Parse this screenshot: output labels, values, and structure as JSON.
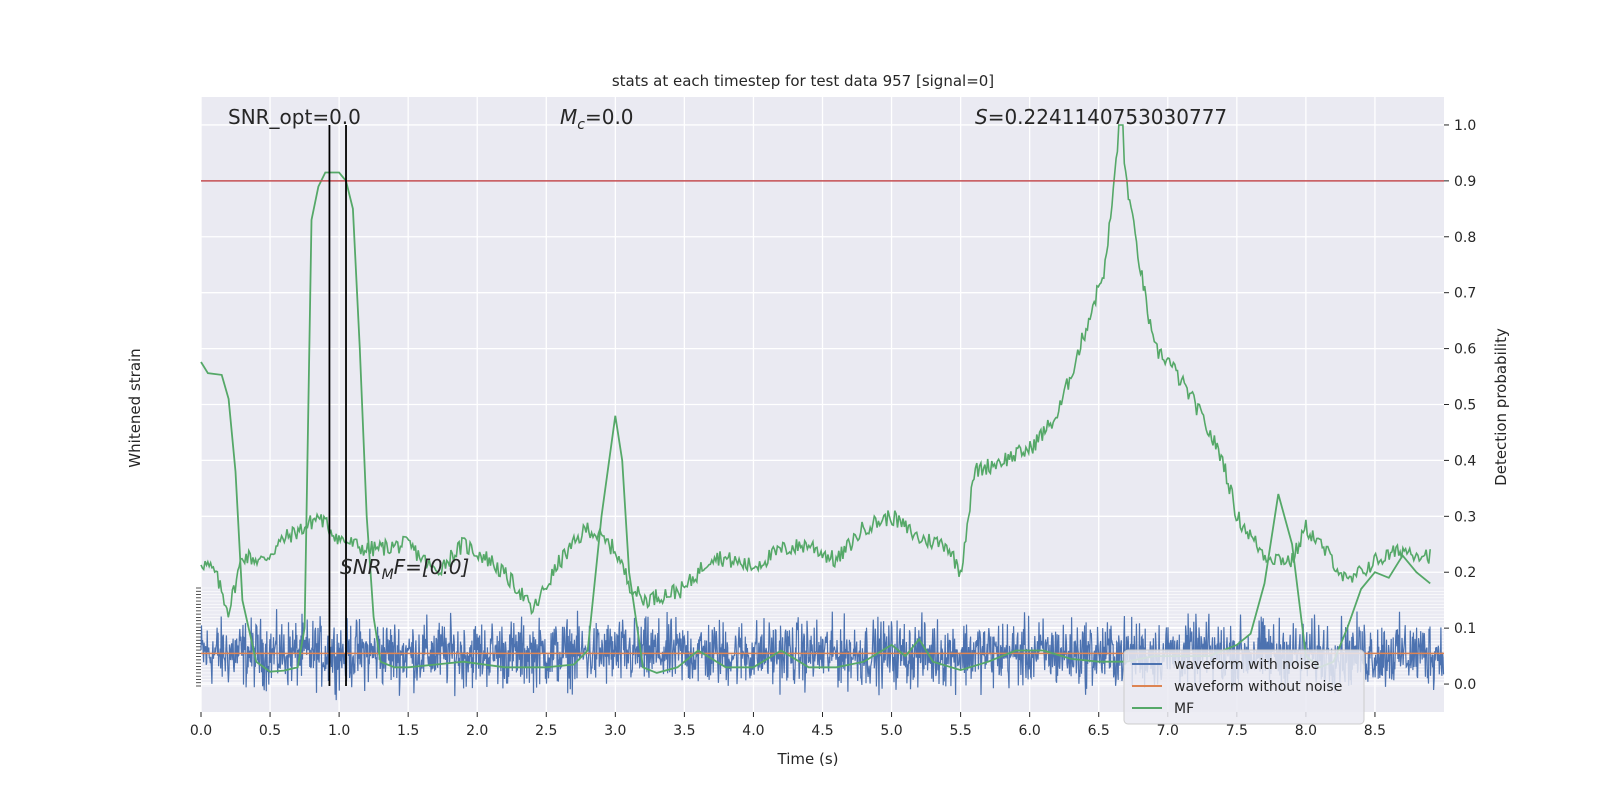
{
  "chart_data": {
    "type": "line",
    "title": "stats at each timestep for test data 957 [signal=0]",
    "xlabel": "Time (s)",
    "ylabel_left": "Whitened strain",
    "ylabel_right": "Detection probability",
    "xlim": [
      0,
      9.0
    ],
    "ylim_left": [
      -1.0,
      2.0
    ],
    "ylim_right": [
      -0.05,
      1.05
    ],
    "x_ticks": [
      "0.0",
      "0.5",
      "1.0",
      "1.5",
      "2.0",
      "2.5",
      "3.0",
      "3.5",
      "4.0",
      "4.5",
      "5.0",
      "5.5",
      "6.0",
      "6.5",
      "7.0",
      "7.5",
      "8.0",
      "8.5"
    ],
    "x_tick_values": [
      0,
      0.5,
      1.0,
      1.5,
      2.0,
      2.5,
      3.0,
      3.5,
      4.0,
      4.5,
      5.0,
      5.5,
      6.0,
      6.5,
      7.0,
      7.5,
      8.0,
      8.5
    ],
    "y_right_ticks": [
      "0.0",
      "0.1",
      "0.2",
      "0.3",
      "0.4",
      "0.5",
      "0.6",
      "0.7",
      "0.8",
      "0.9",
      "1.0"
    ],
    "y_right_tick_values": [
      0,
      0.1,
      0.2,
      0.3,
      0.4,
      0.5,
      0.6,
      0.7,
      0.8,
      0.9,
      1.0
    ],
    "threshold": 0.9,
    "vlines": [
      0.93,
      1.05
    ],
    "annotations": {
      "snr_opt": "SNR_opt=0.0",
      "mc_sym": "M",
      "mc_sub": "c",
      "mc_val": "=0.0",
      "s_sym": "S",
      "s_val": "=0.2241140753030777",
      "snr_mf_a": "SNR",
      "snr_mf_sub": "M",
      "snr_mf_b": "F=[0.0]"
    },
    "legend": {
      "position": "lower-right",
      "entries": [
        "waveform with noise",
        "waveform without noise",
        "MF"
      ]
    },
    "colors": {
      "noise": "#4c72b0",
      "clean": "#dd8452",
      "prob": "#55a868",
      "threshold": "#c44e52",
      "vline": "#000000",
      "background": "#eaeaf2",
      "grid": "#ffffff"
    },
    "mf_series": {
      "x": [
        0.0,
        0.05,
        0.15,
        0.2,
        0.25,
        0.3,
        0.4,
        0.5,
        0.6,
        0.7,
        0.75,
        0.8,
        0.85,
        0.9,
        1.0,
        1.05,
        1.1,
        1.15,
        1.2,
        1.25,
        1.3,
        1.4,
        1.5,
        1.7,
        1.9,
        2.2,
        2.5,
        2.7,
        2.8,
        2.9,
        3.0,
        3.05,
        3.1,
        3.2,
        3.3,
        3.45,
        3.6,
        3.8,
        4.0,
        4.2,
        4.4,
        4.6,
        4.8,
        5.0,
        5.1,
        5.2,
        5.3,
        5.5,
        5.7,
        5.9,
        6.1,
        6.3,
        6.5,
        6.7,
        6.9,
        7.1,
        7.3,
        7.5,
        7.6,
        7.7,
        7.8,
        7.9,
        7.95,
        8.0,
        8.1,
        8.2,
        8.3,
        8.4,
        8.5,
        8.6,
        8.7,
        8.8,
        8.9
      ],
      "y": [
        0.576,
        0.556,
        0.553,
        0.51,
        0.38,
        0.15,
        0.04,
        0.022,
        0.024,
        0.03,
        0.1,
        0.83,
        0.89,
        0.915,
        0.915,
        0.9,
        0.85,
        0.6,
        0.3,
        0.12,
        0.04,
        0.03,
        0.03,
        0.035,
        0.04,
        0.03,
        0.03,
        0.035,
        0.06,
        0.3,
        0.48,
        0.4,
        0.2,
        0.03,
        0.02,
        0.03,
        0.06,
        0.03,
        0.03,
        0.06,
        0.03,
        0.03,
        0.04,
        0.07,
        0.05,
        0.08,
        0.04,
        0.025,
        0.04,
        0.06,
        0.06,
        0.045,
        0.04,
        0.04,
        0.05,
        0.05,
        0.05,
        0.07,
        0.09,
        0.18,
        0.34,
        0.25,
        0.15,
        0.05,
        0.03,
        0.04,
        0.1,
        0.17,
        0.2,
        0.19,
        0.23,
        0.2,
        0.18
      ]
    },
    "prob_anchors": {
      "x": [
        0.0,
        0.1,
        0.2,
        0.3,
        0.45,
        0.6,
        0.75,
        0.85,
        1.0,
        1.2,
        1.5,
        1.7,
        1.9,
        2.1,
        2.3,
        2.4,
        2.6,
        2.8,
        3.0,
        3.1,
        3.2,
        3.5,
        3.7,
        4.0,
        4.2,
        4.4,
        4.6,
        4.8,
        5.0,
        5.2,
        5.4,
        5.5,
        5.6,
        5.8,
        6.0,
        6.2,
        6.4,
        6.55,
        6.65,
        6.75,
        6.9,
        7.0,
        7.2,
        7.4,
        7.5,
        7.7,
        7.9,
        8.0,
        8.2,
        8.3,
        8.5,
        8.7,
        8.9
      ],
      "y": [
        0.22,
        0.2,
        0.13,
        0.23,
        0.22,
        0.26,
        0.28,
        0.3,
        0.26,
        0.24,
        0.25,
        0.2,
        0.25,
        0.22,
        0.17,
        0.13,
        0.22,
        0.28,
        0.24,
        0.18,
        0.15,
        0.17,
        0.23,
        0.21,
        0.24,
        0.25,
        0.22,
        0.28,
        0.3,
        0.26,
        0.25,
        0.2,
        0.38,
        0.4,
        0.42,
        0.48,
        0.63,
        0.75,
        0.99,
        0.82,
        0.6,
        0.58,
        0.5,
        0.4,
        0.3,
        0.23,
        0.22,
        0.28,
        0.22,
        0.18,
        0.22,
        0.24,
        0.23
      ]
    },
    "prob_peak": {
      "x": 6.66,
      "y": 1.0
    },
    "noise_band": {
      "center": 0.0,
      "amplitude": 0.28,
      "samples": 2400
    },
    "clean_level": 0.0
  }
}
